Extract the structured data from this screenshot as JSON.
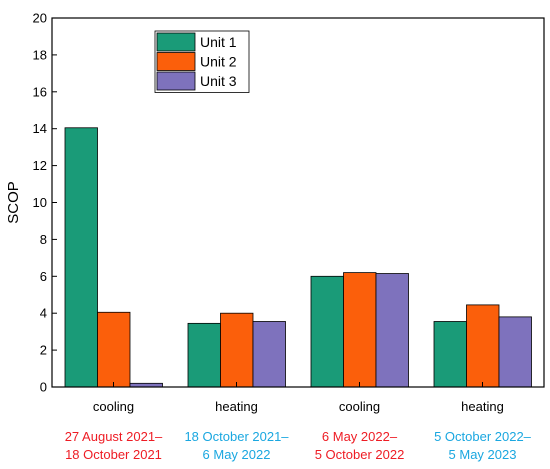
{
  "chart_data": {
    "type": "bar",
    "ylabel": "SCOP",
    "ylim": [
      0,
      20
    ],
    "yticks": [
      0,
      2,
      4,
      6,
      8,
      10,
      12,
      14,
      16,
      18,
      20
    ],
    "categories": [
      "cooling",
      "heating",
      "cooling",
      "heating"
    ],
    "periods": [
      {
        "line1": "27 August 2021–",
        "line2": "18 October 2021",
        "color": "#ee1c24"
      },
      {
        "line1": "18 October 2021–",
        "line2": "6 May 2022",
        "color": "#1aa7e0"
      },
      {
        "line1": "6 May 2022–",
        "line2": "5 October 2022",
        "color": "#ee1c24"
      },
      {
        "line1": "5 October 2022–",
        "line2": "5 May 2023",
        "color": "#1aa7e0"
      }
    ],
    "series": [
      {
        "name": "Unit 1",
        "color": "#1a9b78",
        "values": [
          14.05,
          3.45,
          6.0,
          3.55
        ]
      },
      {
        "name": "Unit 2",
        "color": "#fb5f0b",
        "values": [
          4.05,
          4.0,
          6.2,
          4.45
        ]
      },
      {
        "name": "Unit 3",
        "color": "#7e72bd",
        "values": [
          0.2,
          3.55,
          6.15,
          3.8
        ]
      }
    ],
    "legend_position": "top-left-inside",
    "grid": false
  }
}
